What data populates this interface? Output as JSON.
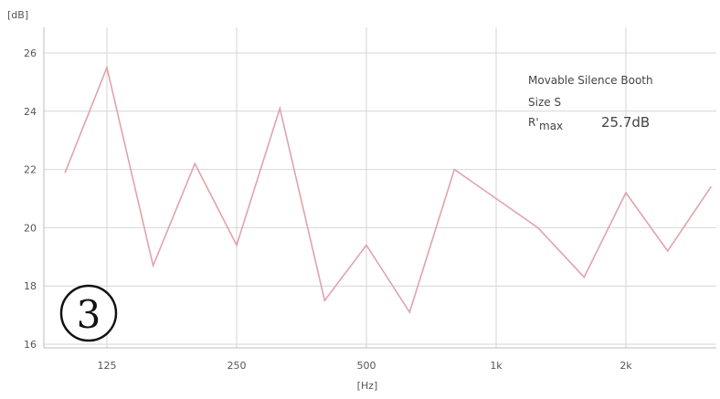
{
  "chart_data": {
    "type": "line",
    "title": "",
    "ylabel": "[dB]",
    "xlabel": "[Hz]",
    "x_scale": "log",
    "ylim": [
      16,
      26
    ],
    "y_ticks": [
      "16",
      "18",
      "20",
      "22",
      "24",
      "26"
    ],
    "x_ticks": [
      {
        "value": 125,
        "label": "125"
      },
      {
        "value": 250,
        "label": "250"
      },
      {
        "value": 500,
        "label": "500"
      },
      {
        "value": 1000,
        "label": "1k"
      },
      {
        "value": 2000,
        "label": "2k"
      }
    ],
    "grid": true,
    "x": [
      100,
      125,
      160,
      200,
      250,
      315,
      400,
      500,
      630,
      800,
      1000,
      1250,
      1600,
      2000,
      2500,
      3150
    ],
    "series": [
      {
        "color": "#e0a3ad",
        "values": [
          21.9,
          25.5,
          18.7,
          22.2,
          19.4,
          24.1,
          17.5,
          19.4,
          17.1,
          22.0,
          21.0,
          20.0,
          18.3,
          21.2,
          19.2,
          21.4
        ]
      }
    ],
    "annotations": {
      "line1": "Movable Silence Booth",
      "line2": "Size S",
      "r_label": "R'",
      "r_sub": "max",
      "r_value": "25.7dB"
    }
  },
  "badge": "3"
}
